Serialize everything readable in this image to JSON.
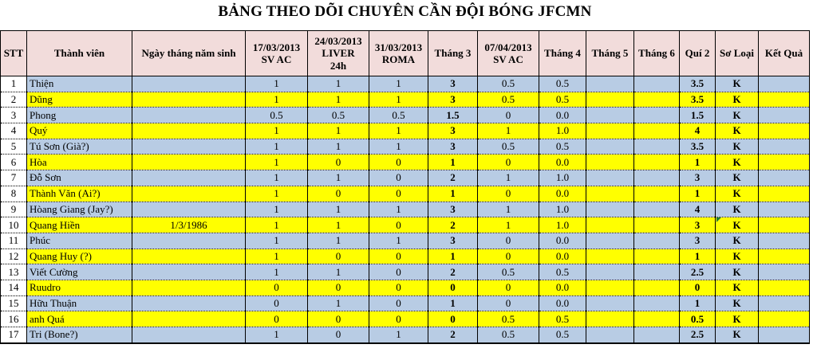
{
  "title": "BẢNG THEO DÕI CHUYÊN CẦN ĐỘI BÓNG JFCMN",
  "colors": {
    "header_bg": "#F2DCDB",
    "row_blue": "#B8CCE4",
    "row_highlight_yellow": "#FFFF00",
    "note_indicator_green": "#1F7A33",
    "grid_border": "#000000"
  },
  "columns": [
    {
      "id": "stt",
      "label": "STT"
    },
    {
      "id": "member",
      "label": "Thành viên"
    },
    {
      "id": "dob",
      "label": "Ngày tháng năm sinh"
    },
    {
      "id": "d1703",
      "label": "17/03/2013\nSV AC"
    },
    {
      "id": "d2403",
      "label": "24/03/2013\nLIVER\n24h"
    },
    {
      "id": "d3103",
      "label": "31/03/2013\nROMA"
    },
    {
      "id": "thang3",
      "label": "Tháng 3"
    },
    {
      "id": "d0704",
      "label": "07/04/2013\nSV AC"
    },
    {
      "id": "thang4",
      "label": "Tháng 4"
    },
    {
      "id": "thang5",
      "label": "Tháng 5"
    },
    {
      "id": "thang6",
      "label": "Tháng 6"
    },
    {
      "id": "qui2",
      "label": "Quí 2"
    },
    {
      "id": "soloai",
      "label": "Sơ Loại"
    },
    {
      "id": "ketqua",
      "label": "Kết Quả"
    }
  ],
  "rows": [
    {
      "stt": "1",
      "member": "Thiện",
      "dob": "",
      "d1703": "1",
      "d2403": "1",
      "d3103": "1",
      "thang3": "3",
      "d0704": "0.5",
      "thang4": "0.5",
      "thang5": "",
      "thang6": "",
      "qui2": "3.5",
      "soloai": "K",
      "ketqua": ""
    },
    {
      "stt": "2",
      "member": "Dũng",
      "dob": "",
      "d1703": "1",
      "d2403": "1",
      "d3103": "1",
      "thang3": "3",
      "d0704": "0.5",
      "thang4": "0.5",
      "thang5": "",
      "thang6": "",
      "qui2": "3.5",
      "soloai": "K",
      "ketqua": ""
    },
    {
      "stt": "3",
      "member": "Phong",
      "dob": "",
      "d1703": "0.5",
      "d2403": "0.5",
      "d3103": "0.5",
      "thang3": "1.5",
      "d0704": "0",
      "thang4": "0.0",
      "thang5": "",
      "thang6": "",
      "qui2": "1.5",
      "soloai": "K",
      "ketqua": ""
    },
    {
      "stt": "4",
      "member": "Quý",
      "dob": "",
      "d1703": "1",
      "d2403": "1",
      "d3103": "1",
      "thang3": "3",
      "d0704": "1",
      "thang4": "1.0",
      "thang5": "",
      "thang6": "",
      "qui2": "4",
      "soloai": "K",
      "ketqua": ""
    },
    {
      "stt": "5",
      "member": "Tú Sơn (Già?)",
      "dob": "",
      "d1703": "1",
      "d2403": "1",
      "d3103": "1",
      "thang3": "3",
      "d0704": "0.5",
      "thang4": "0.5",
      "thang5": "",
      "thang6": "",
      "qui2": "3.5",
      "soloai": "K",
      "ketqua": ""
    },
    {
      "stt": "6",
      "member": "Hòa",
      "dob": "",
      "d1703": "1",
      "d2403": "0",
      "d3103": "0",
      "thang3": "1",
      "d0704": "0",
      "thang4": "0.0",
      "thang5": "",
      "thang6": "",
      "qui2": "1",
      "soloai": "K",
      "ketqua": ""
    },
    {
      "stt": "7",
      "member": "Đỗ Sơn",
      "dob": "",
      "d1703": "1",
      "d2403": "1",
      "d3103": "0",
      "thang3": "2",
      "d0704": "1",
      "thang4": "1.0",
      "thang5": "",
      "thang6": "",
      "qui2": "3",
      "soloai": "K",
      "ketqua": ""
    },
    {
      "stt": "8",
      "member": "Thành Văn (Ai?)",
      "dob": "",
      "d1703": "1",
      "d2403": "0",
      "d3103": "0",
      "thang3": "1",
      "d0704": "0",
      "thang4": "0.0",
      "thang5": "",
      "thang6": "",
      "qui2": "1",
      "soloai": "K",
      "ketqua": ""
    },
    {
      "stt": "9",
      "member": "Hòang Giang (Jay?)",
      "dob": "",
      "d1703": "1",
      "d2403": "1",
      "d3103": "1",
      "thang3": "3",
      "d0704": "1",
      "thang4": "1.0",
      "thang5": "",
      "thang6": "",
      "qui2": "4",
      "soloai": "K",
      "ketqua": ""
    },
    {
      "stt": "10",
      "member": "Quang Hiền",
      "dob": "1/3/1986",
      "d1703": "1",
      "d2403": "1",
      "d3103": "0",
      "thang3": "2",
      "d0704": "1",
      "thang4": "1.0",
      "thang5": "",
      "thang6": "",
      "qui2": "3",
      "soloai": "K",
      "ketqua": "",
      "note_on": "soloai"
    },
    {
      "stt": "11",
      "member": "Phúc",
      "dob": "",
      "d1703": "1",
      "d2403": "1",
      "d3103": "1",
      "thang3": "3",
      "d0704": "0",
      "thang4": "0.0",
      "thang5": "",
      "thang6": "",
      "qui2": "3",
      "soloai": "K",
      "ketqua": ""
    },
    {
      "stt": "12",
      "member": "Quang Huy (?)",
      "dob": "",
      "d1703": "1",
      "d2403": "0",
      "d3103": "0",
      "thang3": "1",
      "d0704": "0",
      "thang4": "0.0",
      "thang5": "",
      "thang6": "",
      "qui2": "1",
      "soloai": "K",
      "ketqua": ""
    },
    {
      "stt": "13",
      "member": "Viết Cường",
      "dob": "",
      "d1703": "1",
      "d2403": "1",
      "d3103": "0",
      "thang3": "2",
      "d0704": "0.5",
      "thang4": "0.5",
      "thang5": "",
      "thang6": "",
      "qui2": "2.5",
      "soloai": "K",
      "ketqua": ""
    },
    {
      "stt": "14",
      "member": "Ruudro",
      "dob": "",
      "d1703": "0",
      "d2403": "0",
      "d3103": "0",
      "thang3": "0",
      "d0704": "0",
      "thang4": "0.0",
      "thang5": "",
      "thang6": "",
      "qui2": "0",
      "soloai": "K",
      "ketqua": ""
    },
    {
      "stt": "15",
      "member": "Hữu Thuận",
      "dob": "",
      "d1703": "0",
      "d2403": "1",
      "d3103": "0",
      "thang3": "1",
      "d0704": "0",
      "thang4": "0.0",
      "thang5": "",
      "thang6": "",
      "qui2": "1",
      "soloai": "K",
      "ketqua": ""
    },
    {
      "stt": "16",
      "member": "anh Quá",
      "dob": "",
      "d1703": "0",
      "d2403": "0",
      "d3103": "0",
      "thang3": "0",
      "d0704": "0.5",
      "thang4": "0.5",
      "thang5": "",
      "thang6": "",
      "qui2": "0.5",
      "soloai": "K",
      "ketqua": ""
    },
    {
      "stt": "17",
      "member": "Tri (Bone?)",
      "dob": "",
      "d1703": "1",
      "d2403": "0",
      "d3103": "1",
      "thang3": "2",
      "d0704": "0.5",
      "thang4": "0.5",
      "thang5": "",
      "thang6": "",
      "qui2": "2.5",
      "soloai": "K",
      "ketqua": ""
    }
  ]
}
